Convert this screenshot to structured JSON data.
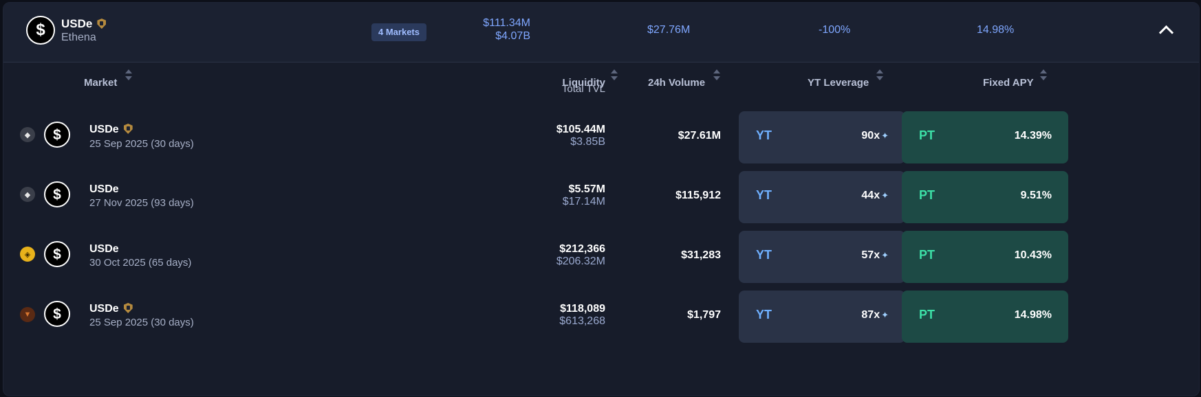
{
  "summary": {
    "asset": "USDe",
    "issuer": "Ethena",
    "markets_chip": "4 Markets",
    "liquidity": "$111.34M",
    "tvl": "$4.07B",
    "volume": "$27.76M",
    "yt_change": "-100%",
    "apy": "14.98%"
  },
  "columns": {
    "market": "Market",
    "liquidity": "Liquidity",
    "total_tvl": "Total TVL",
    "volume": "24h Volume",
    "yt_leverage": "YT Leverage",
    "fixed_apy": "Fixed APY"
  },
  "rows": [
    {
      "chain": "ethereum-icon",
      "name": "USDe",
      "verified": true,
      "date": "25 Sep 2025 (30 days)",
      "liquidity": "$105.44M",
      "tvl": "$3.85B",
      "volume": "$27.61M",
      "yt_label": "YT",
      "yt_leverage": "90x",
      "pt_label": "PT",
      "pt_apy": "14.39%"
    },
    {
      "chain": "ethereum-icon",
      "name": "USDe",
      "verified": false,
      "date": "27 Nov 2025 (93 days)",
      "liquidity": "$5.57M",
      "tvl": "$17.14M",
      "volume": "$115,912",
      "yt_label": "YT",
      "yt_leverage": "44x",
      "pt_label": "PT",
      "pt_apy": "9.51%"
    },
    {
      "chain": "bnb-icon",
      "name": "USDe",
      "verified": false,
      "date": "30 Oct 2025 (65 days)",
      "liquidity": "$212,366",
      "tvl": "$206.32M",
      "volume": "$31,283",
      "yt_label": "YT",
      "yt_leverage": "57x",
      "pt_label": "PT",
      "pt_apy": "10.43%"
    },
    {
      "chain": "fox-icon",
      "name": "USDe",
      "verified": true,
      "date": "25 Sep 2025 (30 days)",
      "liquidity": "$118,089",
      "tvl": "$613,268",
      "volume": "$1,797",
      "yt_label": "YT",
      "yt_leverage": "87x",
      "pt_label": "PT",
      "pt_apy": "14.98%"
    }
  ],
  "colors": {
    "background": "#0d1019",
    "panel": "#171c2a",
    "accent_blue": "#7fa7ff",
    "yt_card": "#2a3347",
    "pt_card": "#1d4a45",
    "pt_text": "#3de0a7"
  }
}
